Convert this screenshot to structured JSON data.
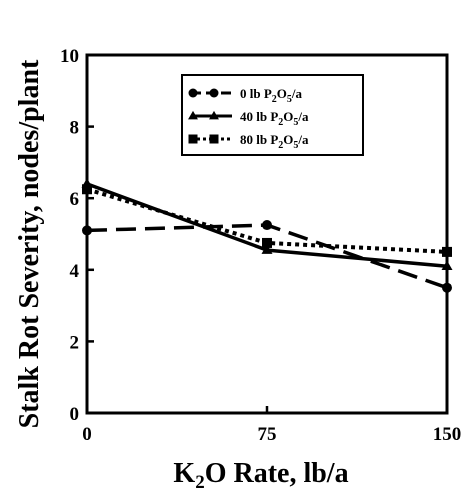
{
  "chart_data": {
    "type": "line",
    "title": "",
    "xlabel": {
      "pre": "K",
      "sub": "2",
      "post": "O Rate, lb/a"
    },
    "ylabel": "Stalk Rot Severity, nodes/plant",
    "x": [
      0,
      75,
      150
    ],
    "x_tick_labels": [
      "0",
      "75",
      "150"
    ],
    "y_ticks": [
      0,
      2,
      4,
      6,
      8,
      10
    ],
    "y_tick_labels": [
      "0",
      "2",
      "4",
      "6",
      "8",
      "10"
    ],
    "xlim": [
      0,
      150
    ],
    "ylim": [
      0,
      10
    ],
    "grid": false,
    "legend_position": "top-right",
    "series": [
      {
        "name": "0 lb P2O5/a",
        "name_parts": [
          "0 lb P",
          "2",
          "O",
          "5",
          "/a"
        ],
        "marker": "circle",
        "line": "long-dash",
        "values": [
          5.1,
          5.25,
          3.5
        ]
      },
      {
        "name": "40 lb P2O5/a",
        "name_parts": [
          "40 lb P",
          "2",
          "O",
          "5",
          "/a"
        ],
        "marker": "triangle",
        "line": "solid",
        "values": [
          6.4,
          4.55,
          4.1
        ]
      },
      {
        "name": "80 lb P2O5/a",
        "name_parts": [
          "80 lb P",
          "2",
          "O",
          "5",
          "/a"
        ],
        "marker": "square",
        "line": "dotted",
        "values": [
          6.25,
          4.75,
          4.5
        ]
      }
    ]
  }
}
